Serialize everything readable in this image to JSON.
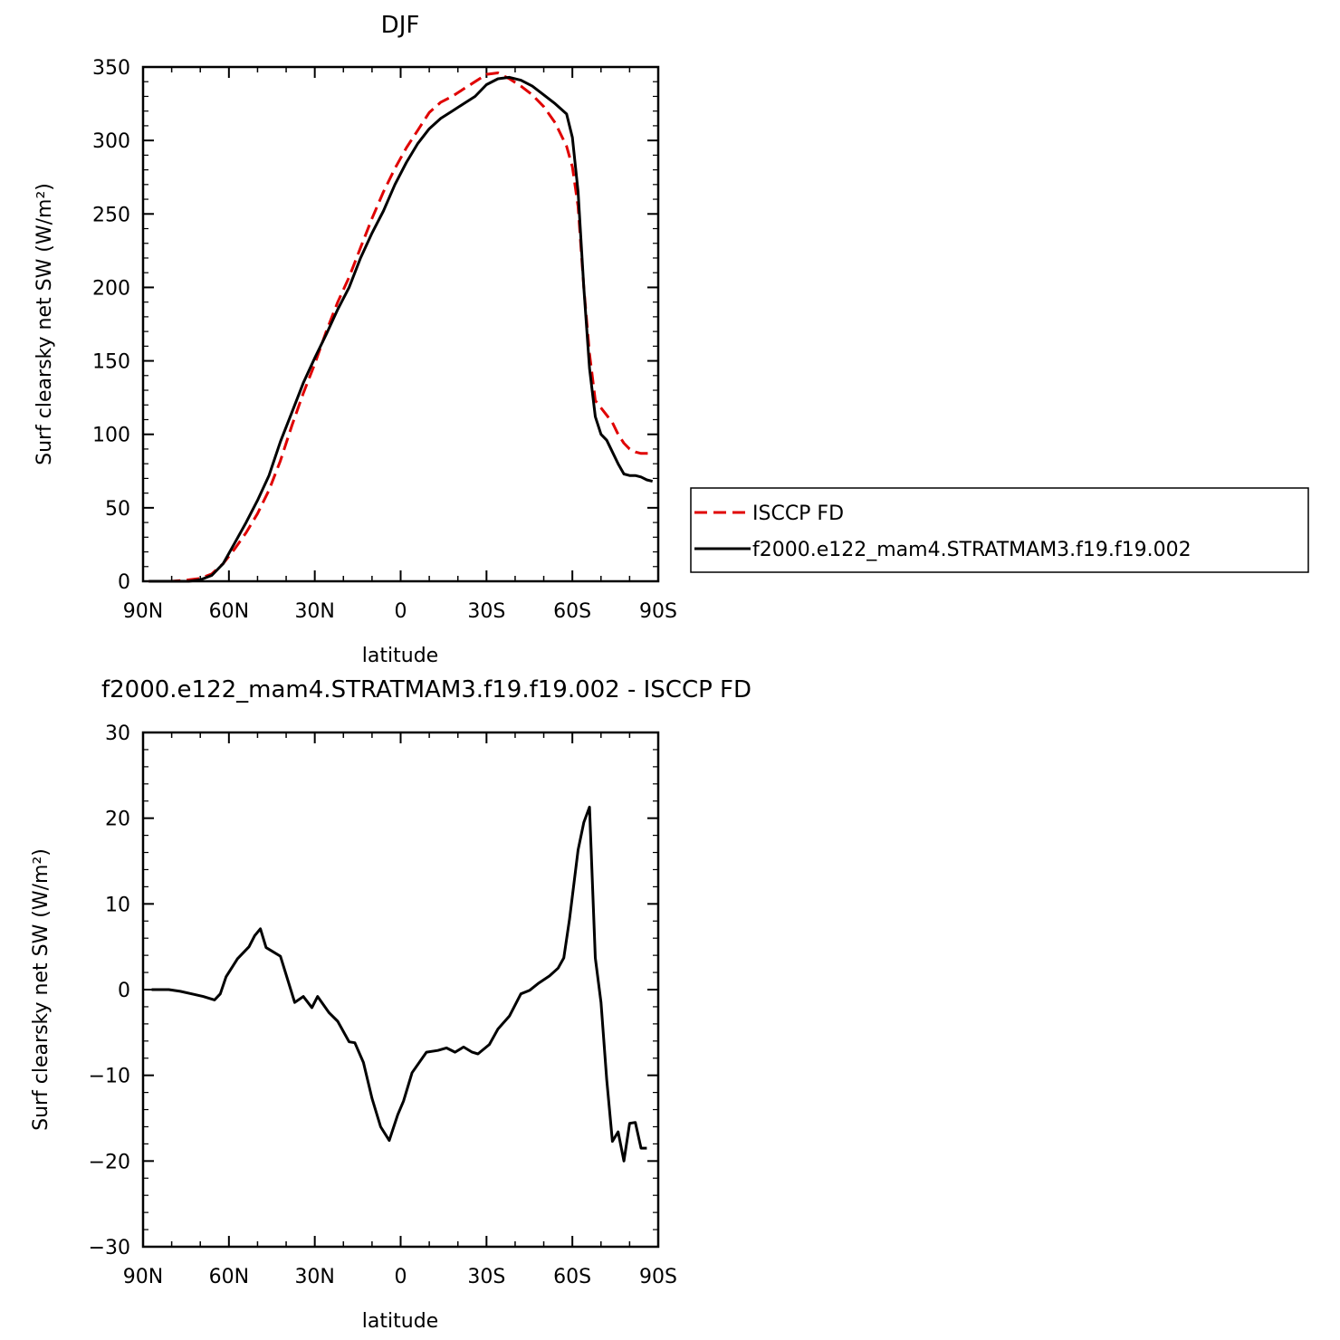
{
  "chart_data": [
    {
      "type": "line",
      "title": "DJF",
      "xlabel": "latitude",
      "ylabel": "Surf clearsky net SW (W/m²)",
      "xlim": [
        -90,
        90
      ],
      "ylim": [
        0,
        350
      ],
      "xticks": [
        -90,
        -60,
        -30,
        0,
        30,
        60,
        90
      ],
      "xticklabels": [
        "90N",
        "60N",
        "30N",
        "0",
        "30S",
        "60S",
        "90S"
      ],
      "yticks": [
        0,
        50,
        100,
        150,
        200,
        250,
        300,
        350
      ],
      "yticklabels": [
        "0",
        "50",
        "100",
        "150",
        "200",
        "250",
        "300",
        "350"
      ],
      "legend_position": "right",
      "series": [
        {
          "name": "ISCCP FD",
          "color": "#e00000",
          "dash": "dashed",
          "x": [
            -88,
            -80,
            -74,
            -70,
            -66,
            -62,
            -58,
            -54,
            -50,
            -46,
            -42,
            -38,
            -34,
            -30,
            -26,
            -22,
            -18,
            -14,
            -10,
            -6,
            -2,
            2,
            6,
            10,
            14,
            18,
            22,
            26,
            30,
            34,
            38,
            42,
            46,
            50,
            54,
            58,
            60,
            62,
            64,
            66,
            68,
            70,
            72,
            74,
            76,
            78,
            80,
            82,
            84,
            86,
            88
          ],
          "y": [
            0,
            0,
            1,
            2,
            5,
            12,
            22,
            33,
            46,
            62,
            82,
            106,
            128,
            148,
            170,
            190,
            207,
            227,
            247,
            265,
            281,
            295,
            307,
            319,
            326,
            330,
            335,
            340,
            345,
            346,
            342,
            337,
            331,
            323,
            312,
            296,
            282,
            255,
            200,
            155,
            123,
            118,
            113,
            108,
            100,
            94,
            90,
            88,
            87,
            87,
            87
          ]
        },
        {
          "name": "f2000.e122_mam4.STRATMAM3.f19.f19.002",
          "color": "#000000",
          "dash": "solid",
          "x": [
            -88,
            -80,
            -74,
            -70,
            -66,
            -62,
            -58,
            -54,
            -50,
            -46,
            -42,
            -38,
            -34,
            -30,
            -26,
            -22,
            -18,
            -14,
            -10,
            -6,
            -2,
            2,
            6,
            10,
            14,
            18,
            22,
            26,
            30,
            34,
            38,
            42,
            46,
            50,
            54,
            58,
            60,
            62,
            64,
            66,
            68,
            70,
            72,
            74,
            76,
            78,
            80,
            82,
            84,
            86,
            88
          ],
          "y": [
            0,
            0,
            0,
            1,
            4,
            12,
            26,
            40,
            55,
            72,
            95,
            115,
            135,
            152,
            168,
            185,
            200,
            220,
            237,
            252,
            270,
            285,
            298,
            308,
            315,
            320,
            325,
            330,
            338,
            342,
            343,
            341,
            337,
            331,
            325,
            318,
            302,
            265,
            200,
            145,
            112,
            100,
            96,
            88,
            80,
            73,
            72,
            72,
            71,
            69,
            68
          ]
        }
      ]
    },
    {
      "type": "line",
      "title": "f2000.e122_mam4.STRATMAM3.f19.f19.002 - ISCCP FD",
      "xlabel": "latitude",
      "ylabel": "Surf clearsky net SW (W/m²)",
      "xlim": [
        -90,
        90
      ],
      "ylim": [
        -30,
        30
      ],
      "xticks": [
        -90,
        -60,
        -30,
        0,
        30,
        60,
        90
      ],
      "xticklabels": [
        "90N",
        "60N",
        "30N",
        "0",
        "30S",
        "60S",
        "90S"
      ],
      "yticks": [
        -30,
        -20,
        -10,
        0,
        10,
        20,
        30
      ],
      "yticklabels": [
        "−30",
        "−20",
        "−10",
        "0",
        "10",
        "20",
        "30"
      ],
      "series": [
        {
          "color": "#000000",
          "dash": "solid",
          "x": [
            -87,
            -81,
            -77,
            -73,
            -69,
            -65,
            -63,
            -61,
            -57,
            -53,
            -51,
            -49,
            -47,
            -45,
            -42,
            -37,
            -34,
            -31,
            -29,
            -25,
            -22,
            -18,
            -16,
            -13,
            -10,
            -7,
            -4,
            -1,
            1,
            4,
            9,
            13,
            16,
            19,
            22,
            25,
            27,
            31,
            34,
            38,
            42,
            45,
            48,
            52,
            55,
            57,
            59,
            62,
            64,
            66,
            68,
            70,
            72,
            74,
            76,
            78,
            80,
            82,
            84,
            86
          ],
          "y": [
            0,
            0,
            -0.2,
            -0.5,
            -0.8,
            -1.2,
            -0.5,
            1.5,
            3.6,
            5.0,
            6.3,
            7.1,
            4.9,
            4.5,
            3.9,
            -1.5,
            -0.8,
            -2.1,
            -0.8,
            -2.7,
            -3.7,
            -6.1,
            -6.2,
            -8.5,
            -12.7,
            -16.0,
            -17.6,
            -14.6,
            -13.0,
            -9.7,
            -7.3,
            -7.1,
            -6.8,
            -7.3,
            -6.7,
            -7.3,
            -7.5,
            -6.4,
            -4.6,
            -3.1,
            -0.5,
            -0.1,
            0.7,
            1.6,
            2.5,
            3.7,
            8.2,
            16.3,
            19.5,
            21.3,
            3.7,
            -1.5,
            -10.5,
            -17.7,
            -16.6,
            -20.0,
            -15.6,
            -15.5,
            -18.5,
            -18.5
          ]
        }
      ]
    }
  ]
}
